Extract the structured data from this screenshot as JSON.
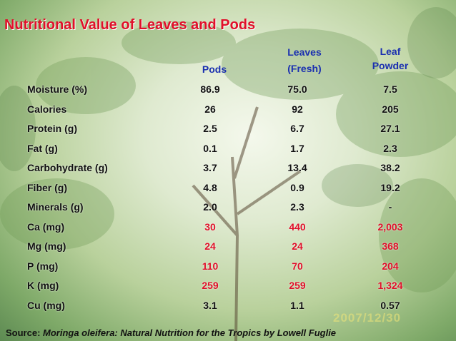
{
  "title": "Nutritional Value of Leaves and Pods",
  "columns": {
    "pods": "Pods",
    "leaves_line1": "Leaves",
    "leaves_line2": "(Fresh)",
    "powder_line1": "Leaf",
    "powder_line2": "Powder"
  },
  "rows": [
    {
      "label": "Moisture (%)",
      "pods": "86.9",
      "leaves": "75.0",
      "powder": "7.5",
      "highlight": false
    },
    {
      "label": "Calories",
      "pods": "26",
      "leaves": "92",
      "powder": "205",
      "highlight": false
    },
    {
      "label": "Protein (g)",
      "pods": "2.5",
      "leaves": "6.7",
      "powder": "27.1",
      "highlight": false
    },
    {
      "label": "Fat (g)",
      "pods": "0.1",
      "leaves": "1.7",
      "powder": "2.3",
      "highlight": false
    },
    {
      "label": "Carbohydrate (g)",
      "pods": "3.7",
      "leaves": "13.4",
      "powder": "38.2",
      "highlight": false
    },
    {
      "label": "Fiber (g)",
      "pods": "4.8",
      "leaves": "0.9",
      "powder": "19.2",
      "highlight": false
    },
    {
      "label": "Minerals (g)",
      "pods": "2.0",
      "leaves": "2.3",
      "powder": "-",
      "highlight": false
    },
    {
      "label": "Ca (mg)",
      "pods": "30",
      "leaves": "440",
      "powder": "2,003",
      "highlight": true
    },
    {
      "label": "Mg (mg)",
      "pods": "24",
      "leaves": "24",
      "powder": "368",
      "highlight": true
    },
    {
      "label": "P (mg)",
      "pods": "110",
      "leaves": "70",
      "powder": "204",
      "highlight": true
    },
    {
      "label": "K (mg)",
      "pods": "259",
      "leaves": "259",
      "powder": "1,324",
      "highlight": true
    },
    {
      "label": "Cu (mg)",
      "pods": "3.1",
      "leaves": "1.1",
      "powder": "0.57",
      "highlight": false
    }
  ],
  "watermark": "2007/12/30",
  "source": {
    "prefix": "Source: ",
    "text": "Moringa oleifera: Natural Nutrition for the Tropics by Lowell Fuglie"
  },
  "colors": {
    "title": "#e0102a",
    "header": "#1a2fb0",
    "highlight": "#e0102a",
    "text": "#111111"
  }
}
